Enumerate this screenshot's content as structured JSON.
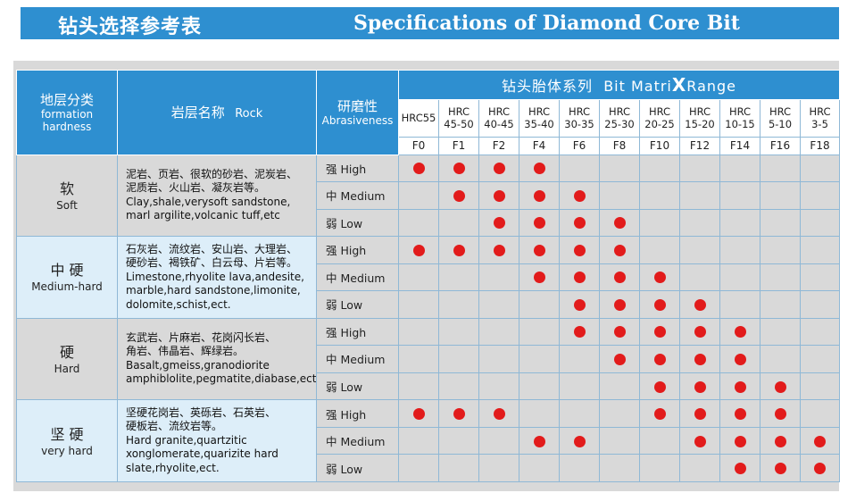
{
  "banner": {
    "title_cn": "钻头选择参考表",
    "title_en": "Specifications of Diamond Core Bit"
  },
  "header": {
    "formation_cn": "地层分类",
    "formation_en1": "formation",
    "formation_en2": "hardness",
    "rock_cn": "岩层名称",
    "rock_en": "Rock",
    "abr_cn": "研磨性",
    "abr_en": "Abrasiveness",
    "range_cn": "钻头胎体系列",
    "range_en_a": "Bit Matri",
    "range_en_x": "X",
    "range_en_b": "Range"
  },
  "columns": [
    {
      "hrc1": "HRC55",
      "hrc2": "",
      "code": "F0"
    },
    {
      "hrc1": "HRC",
      "hrc2": "45-50",
      "code": "F1"
    },
    {
      "hrc1": "HRC",
      "hrc2": "40-45",
      "code": "F2"
    },
    {
      "hrc1": "HRC",
      "hrc2": "35-40",
      "code": "F4"
    },
    {
      "hrc1": "HRC",
      "hrc2": "30-35",
      "code": "F6"
    },
    {
      "hrc1": "HRC",
      "hrc2": "25-30",
      "code": "F8"
    },
    {
      "hrc1": "HRC",
      "hrc2": "20-25",
      "code": "F10"
    },
    {
      "hrc1": "HRC",
      "hrc2": "15-20",
      "code": "F12"
    },
    {
      "hrc1": "HRC",
      "hrc2": "10-15",
      "code": "F14"
    },
    {
      "hrc1": "HRC",
      "hrc2": "5-10",
      "code": "F16"
    },
    {
      "hrc1": "HRC",
      "hrc2": "3-5",
      "code": "F18"
    }
  ],
  "groups": [
    {
      "hard_cn": "软",
      "hard_en": "Soft",
      "shaded": false,
      "rock_lines": [
        "泥岩、页岩、很软的砂岩、泥炭岩、",
        "泥质岩、火山岩、凝灰岩等。",
        "Clay,shale,verysoft sandstone,",
        "marl argilite,volcanic tuff,etc"
      ],
      "rows": [
        {
          "level": "强 High",
          "marks": [
            1,
            1,
            1,
            1,
            0,
            0,
            0,
            0,
            0,
            0,
            0
          ]
        },
        {
          "level": "中 Medium",
          "marks": [
            0,
            1,
            1,
            1,
            1,
            0,
            0,
            0,
            0,
            0,
            0
          ]
        },
        {
          "level": "弱 Low",
          "marks": [
            0,
            0,
            1,
            1,
            1,
            1,
            0,
            0,
            0,
            0,
            0
          ]
        }
      ]
    },
    {
      "hard_cn": "中 硬",
      "hard_en": "Medium-hard",
      "shaded": true,
      "rock_lines": [
        "石灰岩、流纹岩、安山岩、大理岩、",
        "硬砂岩、褐铁矿、白云母、片岩等。",
        "Limestone,rhyolite lava,andesite,",
        "marble,hard sandstone,limonite,",
        "dolomite,schist,ect."
      ],
      "rows": [
        {
          "level": "强 High",
          "marks": [
            1,
            1,
            1,
            1,
            1,
            1,
            0,
            0,
            0,
            0,
            0
          ]
        },
        {
          "level": "中 Medium",
          "marks": [
            0,
            0,
            0,
            1,
            1,
            1,
            1,
            0,
            0,
            0,
            0
          ]
        },
        {
          "level": "弱 Low",
          "marks": [
            0,
            0,
            0,
            0,
            1,
            1,
            1,
            1,
            0,
            0,
            0
          ]
        }
      ]
    },
    {
      "hard_cn": "硬",
      "hard_en": "Hard",
      "shaded": false,
      "rock_lines": [
        "玄武岩、片麻岩、花岗闪长岩、",
        "角岩、伟晶岩、辉绿岩。",
        "Basalt,gmeiss,granodiorite",
        "amphiblolite,pegmatite,diabase,ect."
      ],
      "rows": [
        {
          "level": "强 High",
          "marks": [
            0,
            0,
            0,
            0,
            1,
            1,
            1,
            1,
            1,
            0,
            0
          ]
        },
        {
          "level": "中 Medium",
          "marks": [
            0,
            0,
            0,
            0,
            0,
            1,
            1,
            1,
            1,
            0,
            0
          ]
        },
        {
          "level": "弱 Low",
          "marks": [
            0,
            0,
            0,
            0,
            0,
            0,
            1,
            1,
            1,
            1,
            0
          ]
        }
      ]
    },
    {
      "hard_cn": "坚 硬",
      "hard_en": "very hard",
      "shaded": true,
      "rock_lines": [
        "坚硬花岗岩、英砾岩、石英岩、",
        "硬板岩、流纹岩等。",
        "Hard granite,quartzitic",
        "xonglomerate,quarizite hard",
        "slate,rhyolite,ect."
      ],
      "rows": [
        {
          "level": "强 High",
          "marks": [
            1,
            1,
            1,
            0,
            0,
            0,
            1,
            1,
            1,
            1,
            0
          ]
        },
        {
          "level": "中 Medium",
          "marks": [
            0,
            0,
            0,
            1,
            1,
            0,
            0,
            1,
            1,
            1,
            1
          ]
        },
        {
          "level": "弱 Low",
          "marks": [
            0,
            0,
            0,
            0,
            0,
            0,
            0,
            0,
            1,
            1,
            1
          ]
        }
      ]
    }
  ]
}
